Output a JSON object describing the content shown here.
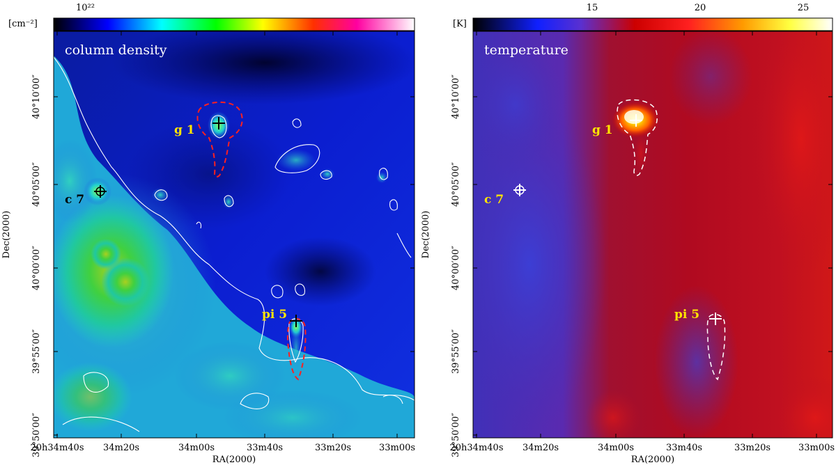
{
  "panels": [
    {
      "label": "column density",
      "colorbar_unit": "[cm⁻²]",
      "colorbar_ticks": [
        "10²²"
      ],
      "xlabel": "RA(2000)",
      "ylabel": "Dec(2000)",
      "xticks": [
        "20h34m40s",
        "34m20s",
        "34m00s",
        "33m40s",
        "33m20s",
        "33m00s"
      ],
      "yticks": [
        "40°10′00″",
        "40°05′00″",
        "40°00′00″",
        "39°55′00″",
        "39°50′00″"
      ]
    },
    {
      "label": "temperature",
      "colorbar_unit": "[K]",
      "colorbar_ticks": [
        "15",
        "20",
        "25"
      ],
      "xlabel": "RA(2000)",
      "ylabel": "Dec(2000)",
      "xticks": [
        "20h34m40s",
        "34m20s",
        "34m00s",
        "33m40s",
        "33m20s",
        "33m00s"
      ],
      "yticks": [
        "40°10′00″",
        "40°05′00″",
        "40°00′00″",
        "39°55′00″",
        "39°50′00″"
      ]
    }
  ],
  "sources": [
    {
      "name": "g 1"
    },
    {
      "name": "c 7"
    },
    {
      "name": "pi 5"
    }
  ],
  "colors": {
    "source_label_left": "#ffe400",
    "source_label_right": "#ffe400",
    "contour": "#ffffff",
    "dashed_left": "#ff2020",
    "dashed_right": "#ffffff"
  }
}
